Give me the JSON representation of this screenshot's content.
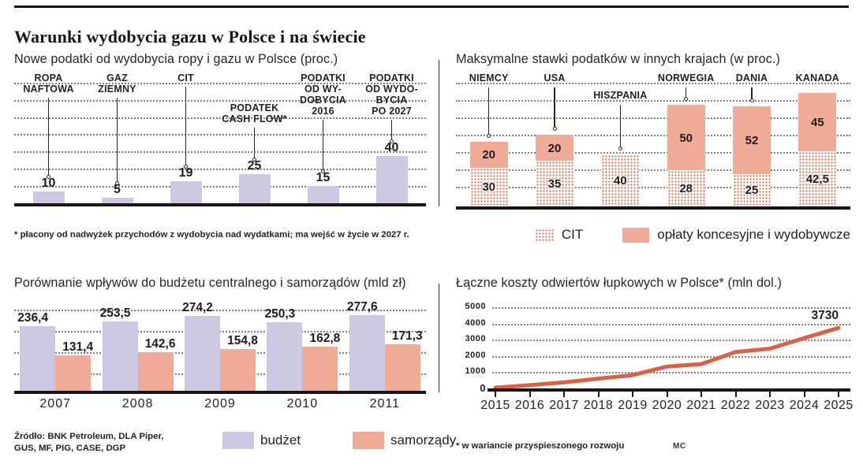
{
  "page": {
    "title": "Warunki wydobycia gazu w Polsce i na świecie",
    "colors": {
      "lavender": "#cdc7e2",
      "salmon": "#efac98",
      "dot_pattern": "#c87a5f",
      "line": "#d9614a",
      "ink": "#241f20",
      "baseline": "#1c1415"
    }
  },
  "chart_data": [
    {
      "id": "new_taxes_poland",
      "type": "bar",
      "title": "Nowe podatki od wydobycia ropy i gazu w Polsce (proc.)",
      "categories": [
        [
          "ROPA",
          "NAFTOWA"
        ],
        [
          "GAZ",
          "ZIEMNY"
        ],
        [
          "CIT"
        ],
        [
          "PODATEK",
          "CASH FLOW*"
        ],
        [
          "PODATKI",
          "OD WY-",
          "DOBYCIA",
          "2016"
        ],
        [
          "PODATKI",
          "OD WYDO-",
          "BYCIA",
          "PO 2027"
        ]
      ],
      "values": [
        10,
        5,
        19,
        25,
        15,
        40
      ],
      "value_labels": [
        "10",
        "5",
        "19",
        "25",
        "15",
        "40"
      ],
      "ylim": [
        0,
        45
      ],
      "grid": "dotted-horizontal",
      "footnote": "* płacony od nadwyżek przychodów z wydobycia nad wydatkami; ma wejść w życie w 2027 r."
    },
    {
      "id": "max_rates_abroad",
      "type": "bar",
      "subtype": "stacked",
      "title": "Maksymalne stawki podatków w innych krajach (w proc.)",
      "categories": [
        "NIEMCY",
        "USA",
        "HISZPANIA",
        "NORWEGIA",
        "DANIA",
        "KANADA"
      ],
      "series": [
        {
          "name": "CIT",
          "style": "dotted",
          "values": [
            30,
            35,
            40,
            28,
            25,
            42.5
          ],
          "labels": [
            "30",
            "35",
            "40",
            "28",
            "25",
            "42,5"
          ]
        },
        {
          "name": "opłaty koncesyjne i wydobywcze",
          "style": "solid",
          "values": [
            20,
            20,
            0,
            50,
            52,
            45
          ],
          "labels": [
            "20",
            "20",
            "",
            "50",
            "52",
            "45"
          ]
        }
      ],
      "legend": [
        "CIT",
        "opłaty koncesyjne i wydobywcze"
      ],
      "grid": "dotted-horizontal"
    },
    {
      "id": "budget_vs_local",
      "type": "bar",
      "subtype": "grouped",
      "title": "Porównanie wpływów do budżetu centralnego i samorządów (mld zł)",
      "categories": [
        "2007",
        "2008",
        "2009",
        "2010",
        "2011"
      ],
      "series": [
        {
          "name": "budżet",
          "values": [
            236.4,
            253.5,
            274.2,
            250.3,
            277.6
          ],
          "labels": [
            "236,4",
            "253,5",
            "274,2",
            "250,3",
            "277,6"
          ]
        },
        {
          "name": "samorządy",
          "values": [
            131.4,
            142.6,
            154.8,
            162.8,
            171.3
          ],
          "labels": [
            "131,4",
            "142,6",
            "154,8",
            "162,8",
            "171,3"
          ]
        }
      ],
      "grid": "dotted-horizontal",
      "source": [
        "Źródło: BNK Petroleum, DLA Piper,",
        "GUS, MF, PIG, CASE, DGP"
      ]
    },
    {
      "id": "shale_well_costs",
      "type": "line",
      "title": "Łączne koszty odwiertów łupkowych w Polsce* (mln dol.)",
      "x": [
        "2015",
        "2016",
        "2017",
        "2018",
        "2019",
        "2020",
        "2021",
        "2022",
        "2023",
        "2024",
        "2025"
      ],
      "values": [
        50,
        200,
        380,
        600,
        820,
        1350,
        1500,
        2250,
        2450,
        3100,
        3730
      ],
      "yticks": [
        5000,
        4000,
        3000,
        2000,
        1000,
        0
      ],
      "ylim": [
        0,
        5000
      ],
      "end_label": "3730",
      "footnote": "* w wariancie przyspieszonego rozwoju",
      "credit": "MC"
    }
  ]
}
